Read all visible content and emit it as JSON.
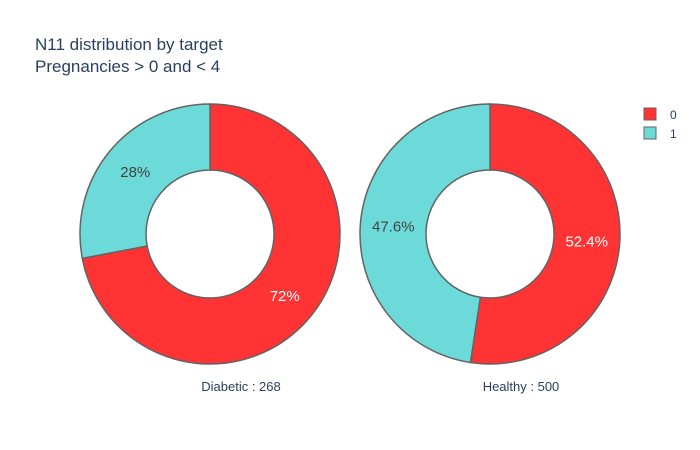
{
  "chart_data": {
    "type": "pie",
    "hole": true,
    "title": "N11 distribution by target",
    "subtitle": "Pregnancies > 0 and < 4",
    "colors": {
      "0": "#ff3333",
      "1": "#6cdad8",
      "stroke": "#636363",
      "text_dark": "#444444",
      "text_light": "#ffffff",
      "title": "#2a3f5f"
    },
    "legend": {
      "position": "top-right",
      "entries": [
        "0",
        "1"
      ]
    },
    "pies": [
      {
        "label": "Diabetic : 268",
        "slices": [
          {
            "category": "0",
            "value": 72,
            "text": "72%"
          },
          {
            "category": "1",
            "value": 28,
            "text": "28%"
          }
        ]
      },
      {
        "label": "Healthy : 500",
        "slices": [
          {
            "category": "0",
            "value": 52.4,
            "text": "52.4%"
          },
          {
            "category": "1",
            "value": 47.6,
            "text": "47.6%"
          }
        ]
      }
    ]
  }
}
